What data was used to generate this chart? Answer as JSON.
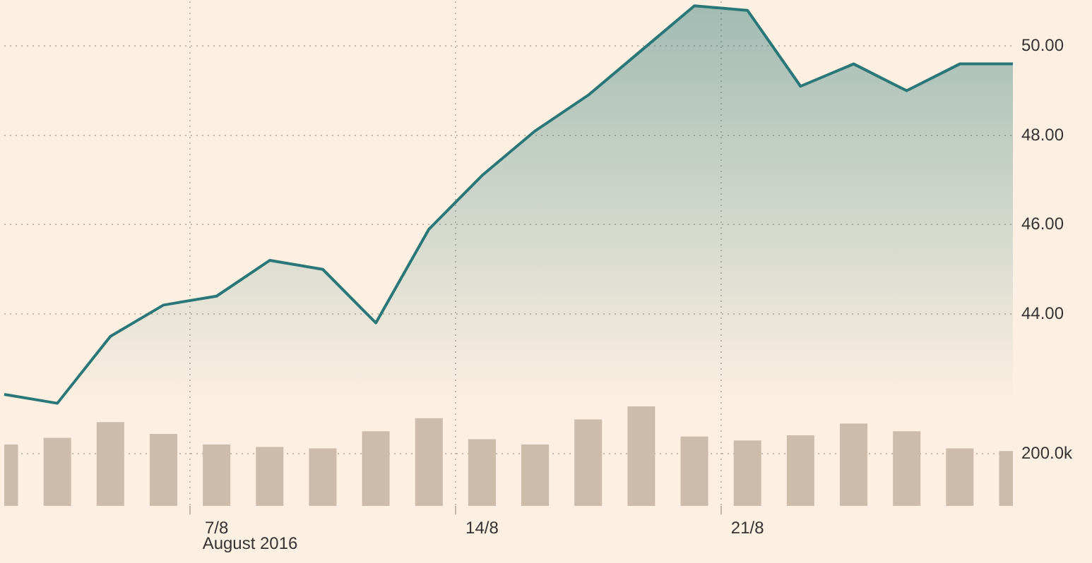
{
  "chart_data": {
    "type": "area",
    "categories": [
      null,
      null,
      null,
      null,
      "7/8",
      null,
      null,
      null,
      null,
      "14/8",
      null,
      null,
      null,
      null,
      "21/8",
      null,
      null,
      null,
      null,
      null
    ],
    "xlabel": "August 2016",
    "series": [
      {
        "type": "bar",
        "axis": "y2",
        "color": "#cdbcaa",
        "values": [
          235000,
          260000,
          320000,
          275000,
          235000,
          225000,
          220000,
          285000,
          335000,
          255000,
          235000,
          330000,
          380000,
          265000,
          250000,
          270000,
          315000,
          285000,
          220000,
          210000
        ]
      },
      {
        "color": "#2a7777",
        "values": [
          42.2,
          42.0,
          43.5,
          44.2,
          44.4,
          45.2,
          45.0,
          43.8,
          45.9,
          47.1,
          48.1,
          48.9,
          49.9,
          50.9,
          50.8,
          49.1,
          49.6,
          49.0,
          49.6,
          49.6
        ]
      }
    ],
    "ylim": [
      39.7,
      51.0
    ],
    "yticks": [
      {
        "value": 44,
        "label": "44.00"
      },
      {
        "value": 46,
        "label": "46.00"
      },
      {
        "value": 48,
        "label": "48.00"
      },
      {
        "value": 50,
        "label": "50.00"
      }
    ],
    "y2lim": [
      0,
      1925000
    ],
    "y2ticks": [
      {
        "value": 200000,
        "label": "200.0k"
      }
    ],
    "grid": true,
    "marker": "none"
  }
}
